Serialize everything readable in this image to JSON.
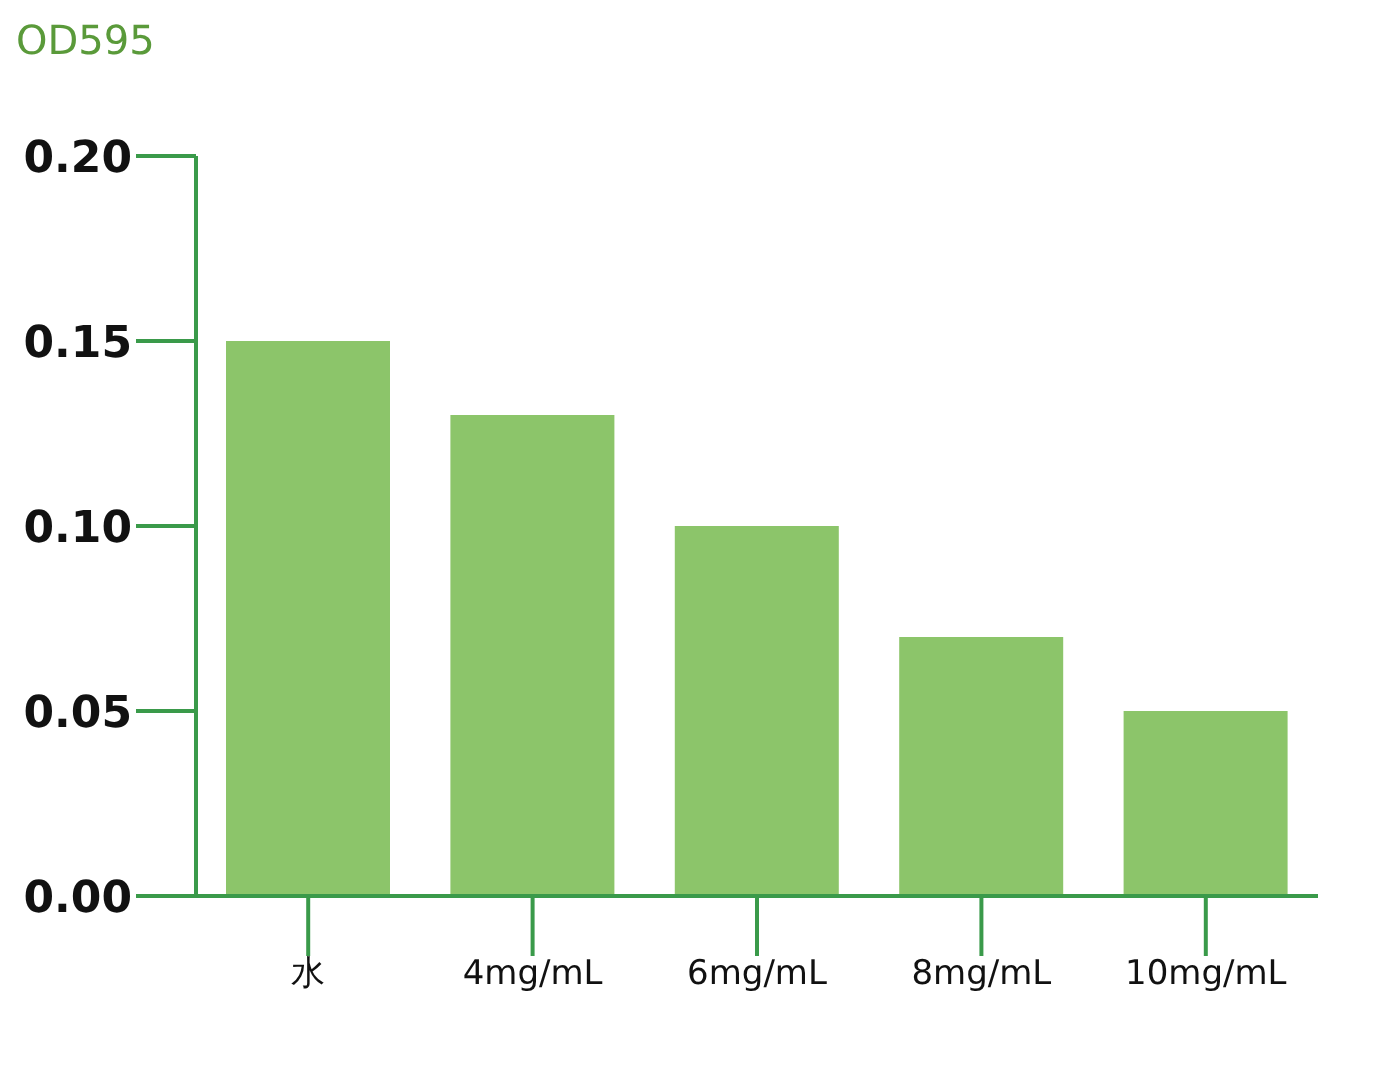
{
  "chart_data": {
    "type": "bar",
    "ylabel": "OD595",
    "categories": [
      "水",
      "4mg/mL",
      "6mg/mL",
      "8mg/mL",
      "10mg/mL"
    ],
    "values": [
      0.15,
      0.13,
      0.1,
      0.07,
      0.05
    ],
    "color": "#8cc56a",
    "ylim": [
      0,
      0.2
    ],
    "yticks": [
      {
        "value": 0,
        "label": "0.00"
      },
      {
        "value": 0.05,
        "label": "0.05"
      },
      {
        "value": 0.1,
        "label": "0.10"
      },
      {
        "value": 0.15,
        "label": "0.15"
      },
      {
        "value": 0.2,
        "label": "0.20"
      }
    ],
    "grid": false,
    "legend": false
  }
}
